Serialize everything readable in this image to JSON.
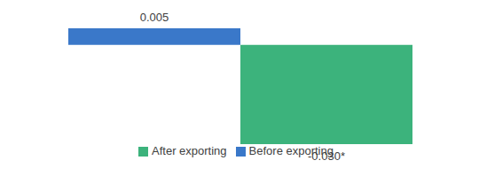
{
  "chart_data": {
    "type": "bar",
    "categories": [
      null
    ],
    "series": [
      {
        "name": "Before exporting",
        "color": "#3a78c9",
        "values": [
          0.005
        ],
        "value_labels": [
          "0.005"
        ]
      },
      {
        "name": "After exporting",
        "color": "#3cb37c",
        "values": [
          -0.03
        ],
        "value_labels": [
          "-0.030*"
        ]
      }
    ],
    "ylim": [
      -0.03,
      0.005
    ],
    "tick_labels": false,
    "data_labels": true,
    "legend": "bottom"
  }
}
